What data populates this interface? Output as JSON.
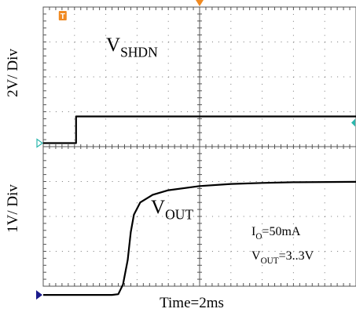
{
  "chart_data": {
    "type": "line",
    "x_axis": {
      "label": "Time=2ms",
      "units_per_division": "2 ms",
      "divisions": 10,
      "range_div": [
        0,
        10
      ]
    },
    "channels": [
      {
        "name": "SHDN",
        "label_main": "V",
        "label_sub": "SHDN",
        "scale_label": "2V/ Div",
        "volts_per_div": 2,
        "zero_level_div_from_top": 3.9,
        "points_div": [
          [
            0,
            0.0
          ],
          [
            1.05,
            0.0
          ],
          [
            1.05,
            1.53
          ],
          [
            10,
            1.53
          ]
        ]
      },
      {
        "name": "OUT",
        "label_main": "V",
        "label_sub": "OUT",
        "scale_label": "1V/ Div",
        "volts_per_div": 1,
        "zero_level_div_from_top": 8.25,
        "points_div": [
          [
            0,
            0.0
          ],
          [
            2.2,
            0.0
          ],
          [
            2.4,
            0.02
          ],
          [
            2.55,
            0.3
          ],
          [
            2.7,
            1.0
          ],
          [
            2.8,
            1.8
          ],
          [
            2.9,
            2.3
          ],
          [
            3.1,
            2.65
          ],
          [
            3.5,
            2.87
          ],
          [
            4.0,
            3.0
          ],
          [
            5.0,
            3.12
          ],
          [
            6.0,
            3.18
          ],
          [
            7.0,
            3.21
          ],
          [
            8.0,
            3.23
          ],
          [
            10,
            3.24
          ]
        ]
      }
    ],
    "annotations": {
      "io_main": "I",
      "io_sub": "O",
      "io_value": "=50mA",
      "vout_main": "V",
      "vout_sub": "OUT",
      "vout_value": "=3..3V"
    },
    "markers": {
      "trigger_label": "T"
    },
    "grid": true,
    "colors": {
      "trace": "#000000",
      "grid": "#555555",
      "trigger": "#f08a22",
      "ch1_marker": "#2bb7ad",
      "ch2_marker": "#1a1a8c"
    }
  }
}
